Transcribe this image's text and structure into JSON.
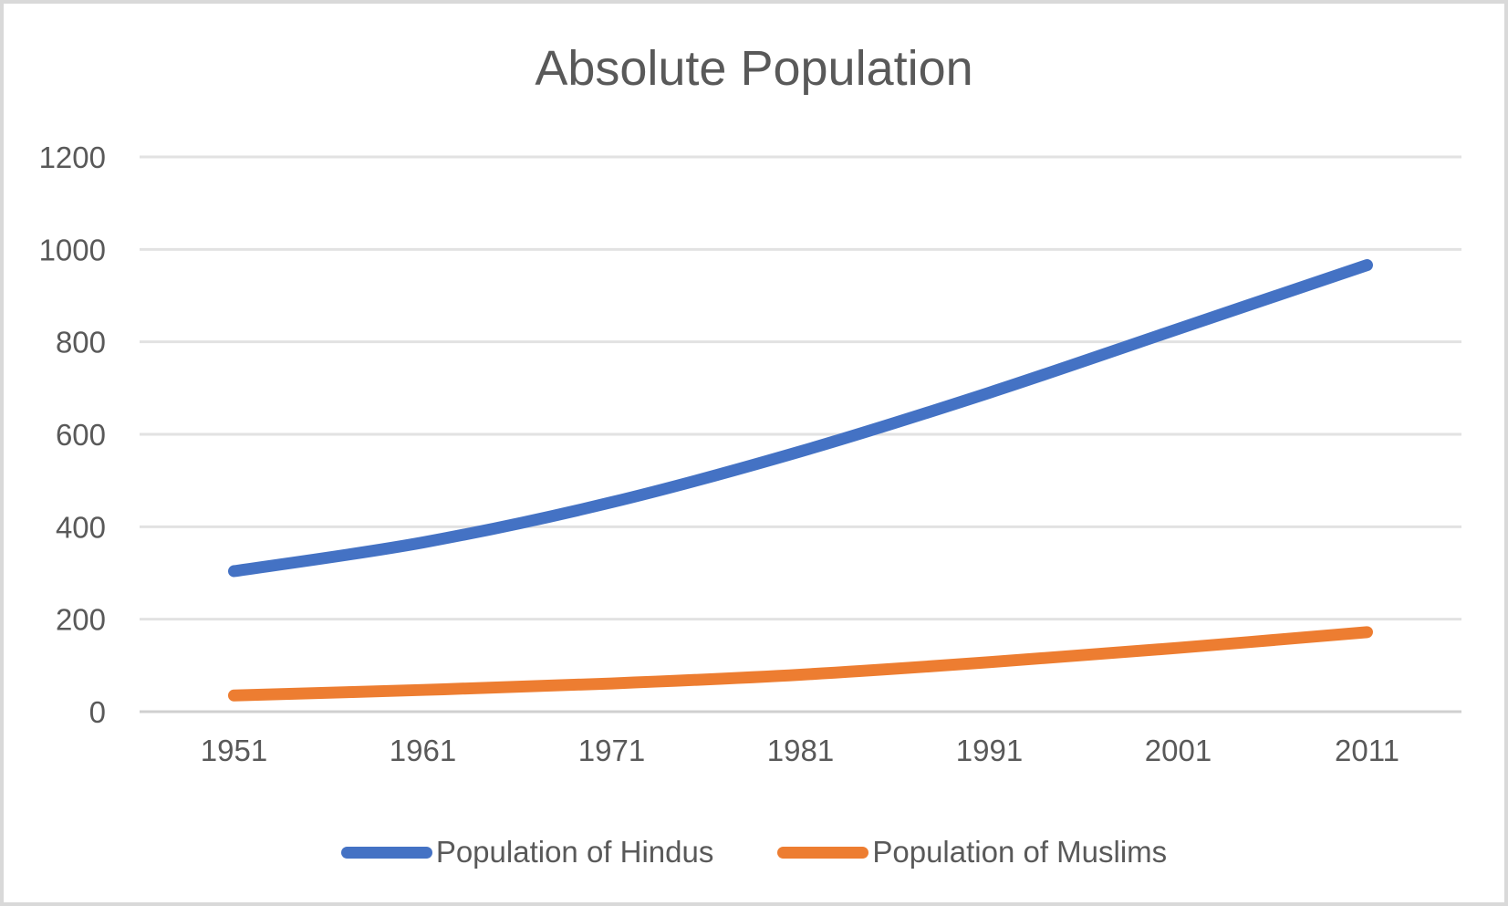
{
  "chart_data": {
    "type": "line",
    "title": "Absolute Population",
    "categories": [
      "1951",
      "1961",
      "1971",
      "1981",
      "1991",
      "2001",
      "2011"
    ],
    "series": [
      {
        "name": "Population of Hindus",
        "color": "#4472C4",
        "values": [
          304,
          366,
          453,
          563,
          690,
          828,
          966
        ]
      },
      {
        "name": "Population of Muslims",
        "color": "#ED7D31",
        "values": [
          35,
          47,
          61,
          80,
          107,
          138,
          172
        ]
      }
    ],
    "xlabel": "",
    "ylabel": "",
    "ylim": [
      0,
      1200
    ],
    "yticks": [
      0,
      200,
      400,
      600,
      800,
      1000,
      1200
    ],
    "grid": true,
    "smooth": true,
    "legend_position": "bottom"
  },
  "styles": {
    "title_color": "#595959",
    "tick_color": "#595959",
    "legend_text_color": "#595959",
    "gridline_color": "#e2e2e2",
    "axis_line_color": "#d0d0d0",
    "frame_border_color": "#d9d9d9",
    "background": "#ffffff"
  }
}
